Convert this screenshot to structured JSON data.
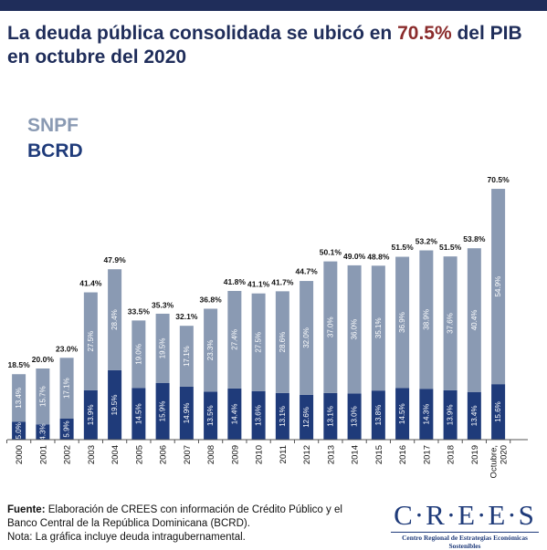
{
  "header": {
    "title_before": "La deuda pública consolidada se ubicó en ",
    "title_accent": "70.5%",
    "title_after": " del PIB en octubre del 2020"
  },
  "colors": {
    "snpf": "#8a9ab3",
    "bcrd": "#1f3b7a",
    "accent": "#8b2c2c",
    "title": "#1f2d5a"
  },
  "chart_data": {
    "type": "bar",
    "stacked": true,
    "title": "La deuda pública consolidada se ubicó en 70.5% del PIB en octubre del 2020",
    "categories": [
      "2000",
      "2001",
      "2002",
      "2003",
      "2004",
      "2005",
      "2006",
      "2007",
      "2008",
      "2009",
      "2010",
      "2011",
      "2012",
      "2013",
      "2014",
      "2015",
      "2016",
      "2017",
      "2018",
      "2019",
      "Octubre, 2020"
    ],
    "series": [
      {
        "name": "BCRD",
        "values": [
          5.0,
          4.3,
          5.9,
          13.9,
          19.5,
          14.5,
          15.9,
          14.9,
          13.5,
          14.4,
          13.6,
          13.1,
          12.6,
          13.1,
          13.0,
          13.8,
          14.5,
          14.3,
          13.9,
          13.4,
          15.6
        ],
        "labels": [
          "5.0%",
          "4.3%",
          "5.9%",
          "13.9%",
          "19.5%",
          "14.5%",
          "15.9%",
          "14.9%",
          "13.5%",
          "14.4%",
          "13.6%",
          "13.1%",
          "12.6%",
          "13.1%",
          "13.0%",
          "13.8%",
          "14.5%",
          "14.3%",
          "13.9%",
          "13.4%",
          "15.6%"
        ]
      },
      {
        "name": "SNPF",
        "values": [
          13.4,
          15.7,
          17.1,
          27.5,
          28.4,
          19.0,
          19.5,
          17.1,
          23.3,
          27.4,
          27.5,
          28.6,
          32.0,
          37.0,
          36.0,
          35.1,
          36.9,
          38.9,
          37.6,
          40.4,
          54.9
        ],
        "labels": [
          "13.4%",
          "15.7%",
          "17.1%",
          "27.5%",
          "28.4%",
          "19.0%",
          "19.5%",
          "17.1%",
          "23.3%",
          "27.4%",
          "27.5%",
          "28.6%",
          "32.0%",
          "37.0%",
          "36.0%",
          "35.1%",
          "36.9%",
          "38.9%",
          "37.6%",
          "40.4%",
          "54.9%"
        ]
      }
    ],
    "totals": [
      18.5,
      20.0,
      23.0,
      41.4,
      47.9,
      33.5,
      35.3,
      32.1,
      36.8,
      41.8,
      41.1,
      41.7,
      44.7,
      50.1,
      49.0,
      48.8,
      51.5,
      53.2,
      51.5,
      53.8,
      70.5
    ],
    "total_labels": [
      "18.5%",
      "20.0%",
      "23.0%",
      "41.4%",
      "47.9%",
      "33.5%",
      "35.3%",
      "32.1%",
      "36.8%",
      "41.8%",
      "41.1%",
      "41.7%",
      "44.7%",
      "50.1%",
      "49.0%",
      "48.8%",
      "51.5%",
      "53.2%",
      "51.5%",
      "53.8%",
      "70.5%"
    ],
    "legend": [
      "SNPF",
      "BCRD"
    ],
    "legend_placement": "top-left",
    "grid": false,
    "ylim": [
      0,
      75
    ]
  },
  "footer": {
    "source_label": "Fuente:",
    "source_text": " Elaboración de CREES con información de Crédito Público y el Banco Central de la República Dominicana (BCRD).",
    "note": "Nota: La gráfica incluye deuda intragubernamental."
  },
  "logo": {
    "wordmark": "C·R·E·E·S",
    "subtitle": "Centro Regional de Estrategias Económicas Sostenibles"
  }
}
